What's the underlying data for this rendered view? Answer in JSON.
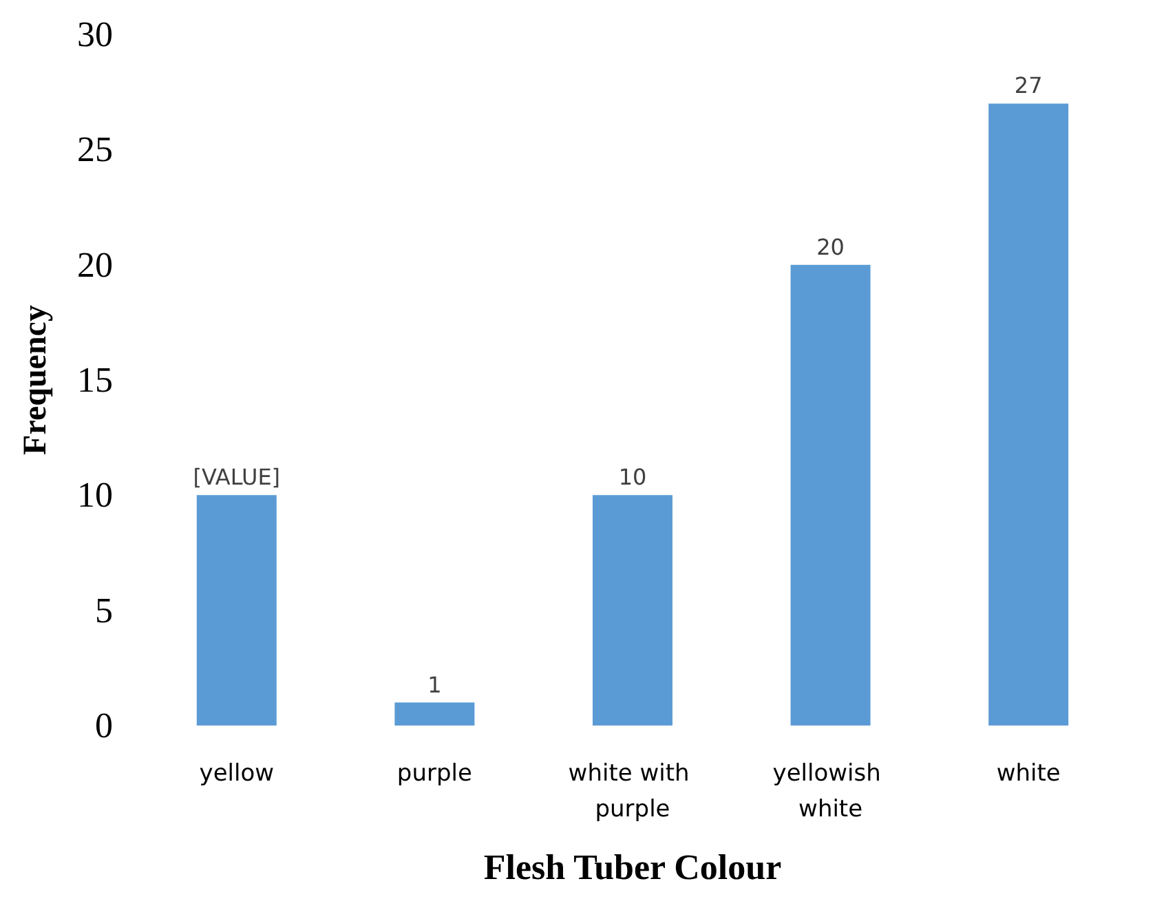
{
  "chart_data": {
    "type": "bar",
    "xlabel": "Flesh Tuber Colour",
    "ylabel": "Frequency",
    "categories": [
      "yellow",
      "purple",
      "white with purple",
      "yellowish white",
      "white"
    ],
    "values": [
      10,
      1,
      10,
      20,
      27
    ],
    "color": "#5b9bd5",
    "value_labels": [
      "[VALUE]",
      "1",
      "10",
      "20",
      "27"
    ],
    "ylim": [
      0,
      30
    ],
    "yticks": [
      0,
      5,
      10,
      15,
      20,
      25,
      30
    ],
    "grid": false
  }
}
